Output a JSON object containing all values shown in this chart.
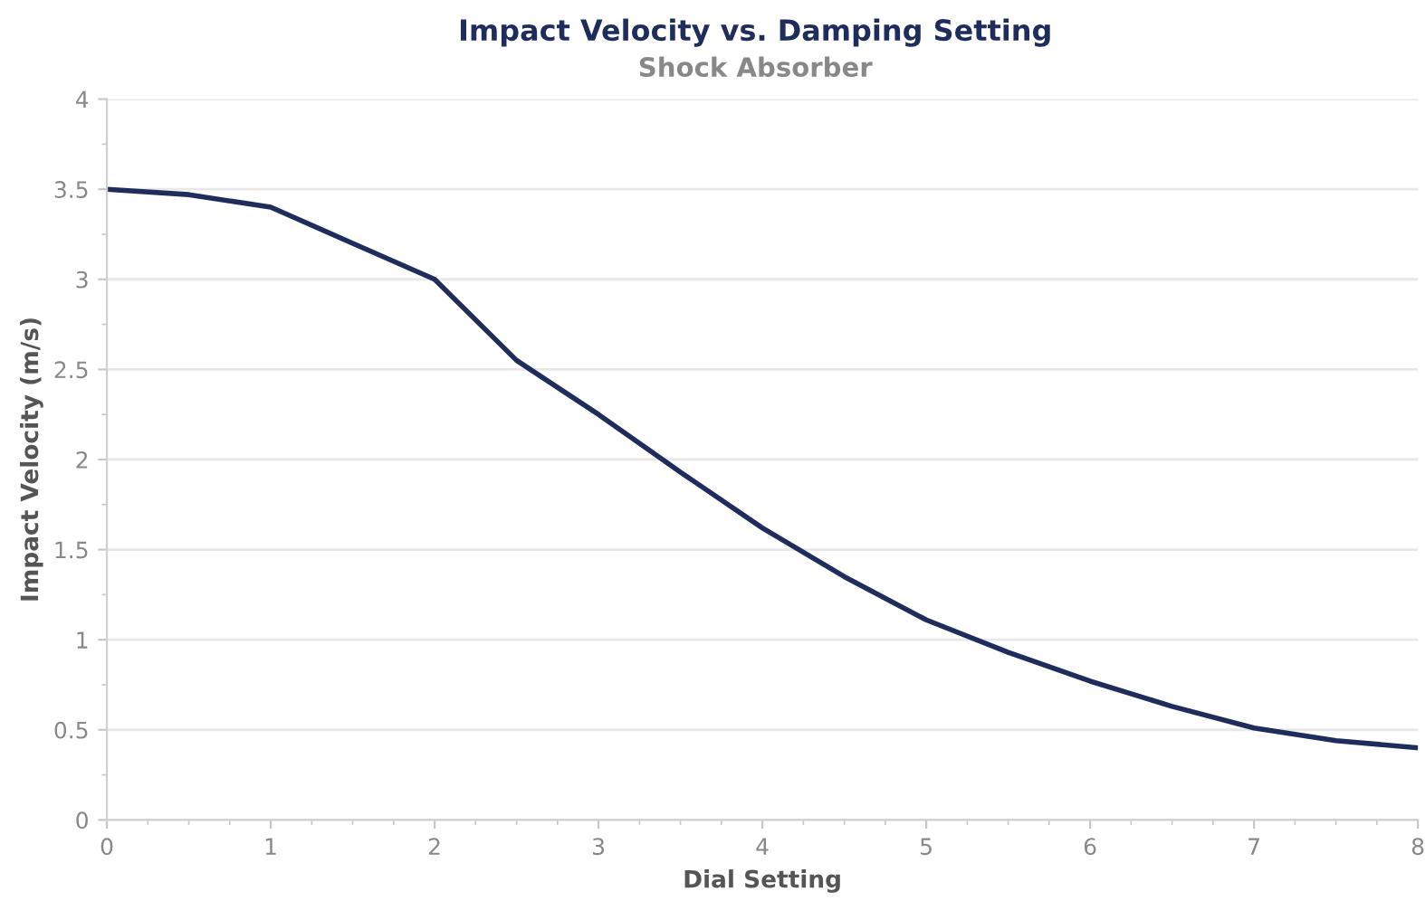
{
  "chart_data": {
    "type": "line",
    "title": "Impact Velocity vs. Damping Setting",
    "subtitle": "Shock Absorber",
    "xlabel": "Dial Setting",
    "ylabel": "Impact Velocity (m/s)",
    "x": [
      0,
      0.5,
      1,
      1.5,
      2,
      2.5,
      3,
      3.5,
      4,
      4.5,
      5,
      5.5,
      6,
      6.5,
      7,
      7.5,
      8
    ],
    "series": [
      {
        "color": "#1f2d5c",
        "values": [
          3.5,
          3.47,
          3.4,
          3.2,
          3.0,
          2.55,
          2.25,
          1.93,
          1.62,
          1.35,
          1.11,
          0.93,
          0.77,
          0.63,
          0.51,
          0.44,
          0.4
        ]
      }
    ],
    "xlim": [
      0,
      8
    ],
    "ylim": [
      0,
      4
    ],
    "xticks": [
      0,
      1,
      2,
      3,
      4,
      5,
      6,
      7,
      8
    ],
    "yticks": [
      0,
      0.5,
      1,
      1.5,
      2,
      2.5,
      3,
      3.5,
      4
    ],
    "grid": "y",
    "legend": false,
    "marker": "none",
    "line_style": "solid"
  }
}
